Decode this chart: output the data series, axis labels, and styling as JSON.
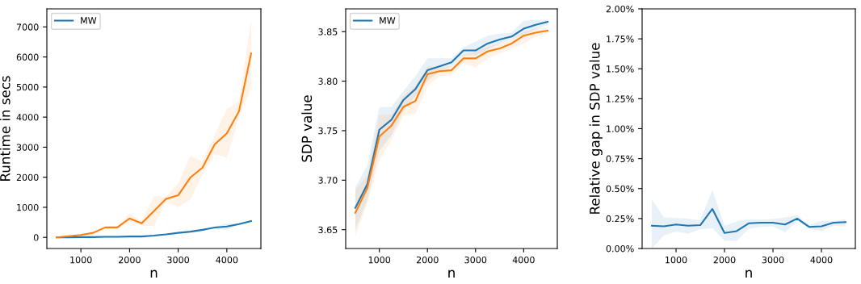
{
  "chart_data": [
    {
      "type": "line",
      "xlabel": "n",
      "ylabel": "Runtime in secs",
      "x": [
        500,
        750,
        1000,
        1250,
        1500,
        1750,
        2000,
        2250,
        2500,
        2750,
        3000,
        3250,
        3500,
        3750,
        4000,
        4250,
        4500
      ],
      "xlim": [
        300,
        4700
      ],
      "xticks": [
        1000,
        2000,
        3000,
        4000
      ],
      "ylim": [
        -370,
        7600
      ],
      "yticks": [
        0,
        1000,
        2000,
        3000,
        4000,
        5000,
        6000,
        7000
      ],
      "legend": "top left",
      "grid": false,
      "series": [
        {
          "name": "MW",
          "color": "#1f77b4",
          "values": [
            0,
            0,
            10,
            10,
            20,
            20,
            30,
            30,
            60,
            100,
            150,
            190,
            250,
            330,
            360,
            440,
            540
          ],
          "lower": [
            0,
            0,
            0,
            10,
            10,
            10,
            20,
            20,
            40,
            80,
            130,
            170,
            220,
            300,
            240,
            420,
            520
          ],
          "upper": [
            0,
            10,
            10,
            20,
            30,
            30,
            50,
            40,
            80,
            120,
            170,
            210,
            280,
            360,
            470,
            460,
            560
          ]
        },
        {
          "color": "#ff7f0e",
          "values": [
            0,
            40,
            80,
            150,
            330,
            330,
            630,
            470,
            870,
            1280,
            1400,
            1990,
            2320,
            3090,
            3460,
            4190,
            6120
          ],
          "lower": [
            0,
            30,
            60,
            130,
            300,
            300,
            500,
            400,
            370,
            1200,
            1000,
            1260,
            2100,
            2780,
            2650,
            4000,
            4970
          ],
          "upper": [
            20,
            50,
            100,
            170,
            350,
            350,
            790,
            540,
            1370,
            1350,
            1800,
            2710,
            2520,
            3400,
            4270,
            4520,
            7230
          ]
        }
      ]
    },
    {
      "type": "line",
      "xlabel": "n",
      "ylabel": "SDP value",
      "x": [
        500,
        750,
        1000,
        1250,
        1500,
        1750,
        2000,
        2250,
        2500,
        2750,
        3000,
        3250,
        3500,
        3750,
        4000,
        4250,
        4500
      ],
      "xlim": [
        300,
        4700
      ],
      "xticks": [
        1000,
        2000,
        3000,
        4000
      ],
      "ylim": [
        3.631,
        3.873
      ],
      "yticks": [
        {
          "value": 3.65,
          "label": "3.65"
        },
        {
          "value": 3.7,
          "label": "3.70"
        },
        {
          "value": 3.75,
          "label": "3.75"
        },
        {
          "value": 3.8,
          "label": "3.80"
        },
        {
          "value": 3.85,
          "label": "3.85"
        }
      ],
      "legend": "top left",
      "grid": false,
      "series": [
        {
          "name": "MW",
          "color": "#1f77b4",
          "values": [
            3.672,
            3.696,
            3.751,
            3.761,
            3.781,
            3.792,
            3.811,
            3.815,
            3.819,
            3.831,
            3.831,
            3.838,
            3.842,
            3.845,
            3.853,
            3.857,
            3.86
          ],
          "lower": [
            3.65,
            3.68,
            3.73,
            3.745,
            3.77,
            3.785,
            3.8,
            3.81,
            3.815,
            3.826,
            3.826,
            3.832,
            3.838,
            3.842,
            3.847,
            3.852,
            3.857
          ],
          "upper": [
            3.693,
            3.715,
            3.774,
            3.774,
            3.79,
            3.805,
            3.823,
            3.823,
            3.823,
            3.834,
            3.84,
            3.846,
            3.848,
            3.849,
            3.861,
            3.862,
            3.862
          ]
        },
        {
          "color": "#ff7f0e",
          "values": [
            3.667,
            3.692,
            3.744,
            3.755,
            3.774,
            3.78,
            3.807,
            3.81,
            3.811,
            3.823,
            3.823,
            3.83,
            3.833,
            3.838,
            3.846,
            3.849,
            3.851
          ],
          "lower": [
            3.643,
            3.677,
            3.72,
            3.74,
            3.765,
            3.767,
            3.795,
            3.805,
            3.806,
            3.818,
            3.814,
            3.823,
            3.828,
            3.833,
            3.838,
            3.845,
            3.848
          ],
          "upper": [
            3.69,
            3.705,
            3.766,
            3.766,
            3.785,
            3.795,
            3.815,
            3.815,
            3.815,
            3.827,
            3.83,
            3.835,
            3.838,
            3.842,
            3.85,
            3.853,
            3.854
          ]
        }
      ]
    },
    {
      "type": "line",
      "xlabel": "n",
      "ylabel": "Relative gap in SDP value",
      "x": [
        500,
        750,
        1000,
        1250,
        1500,
        1750,
        2000,
        2250,
        2500,
        2750,
        3000,
        3250,
        3500,
        3750,
        4000,
        4250,
        4500
      ],
      "xlim": [
        300,
        4700
      ],
      "xticks": [
        1000,
        2000,
        3000,
        4000
      ],
      "ylim": [
        0,
        2.0
      ],
      "yticks": [
        {
          "value": 0,
          "label": "0.00%"
        },
        {
          "value": 0.25,
          "label": "0.25%"
        },
        {
          "value": 0.5,
          "label": "0.50%"
        },
        {
          "value": 0.75,
          "label": "0.75%"
        },
        {
          "value": 1.0,
          "label": "1.00%"
        },
        {
          "value": 1.25,
          "label": "1.25%"
        },
        {
          "value": 1.5,
          "label": "1.50%"
        },
        {
          "value": 1.75,
          "label": "1.75%"
        },
        {
          "value": 2.0,
          "label": "2.00%"
        }
      ],
      "grid": false,
      "series": [
        {
          "color": "#1f77b4",
          "values": [
            0.19,
            0.185,
            0.2,
            0.19,
            0.195,
            0.33,
            0.13,
            0.145,
            0.21,
            0.215,
            0.215,
            0.2,
            0.25,
            0.18,
            0.185,
            0.215,
            0.22
          ],
          "lower": [
            0.0,
            0.11,
            0.14,
            0.125,
            0.16,
            0.17,
            0.065,
            0.063,
            0.165,
            0.18,
            0.185,
            0.135,
            0.23,
            0.17,
            0.145,
            0.19,
            0.185
          ],
          "upper": [
            0.41,
            0.26,
            0.255,
            0.25,
            0.235,
            0.49,
            0.19,
            0.225,
            0.245,
            0.24,
            0.245,
            0.26,
            0.28,
            0.195,
            0.23,
            0.23,
            0.245
          ]
        }
      ]
    }
  ]
}
